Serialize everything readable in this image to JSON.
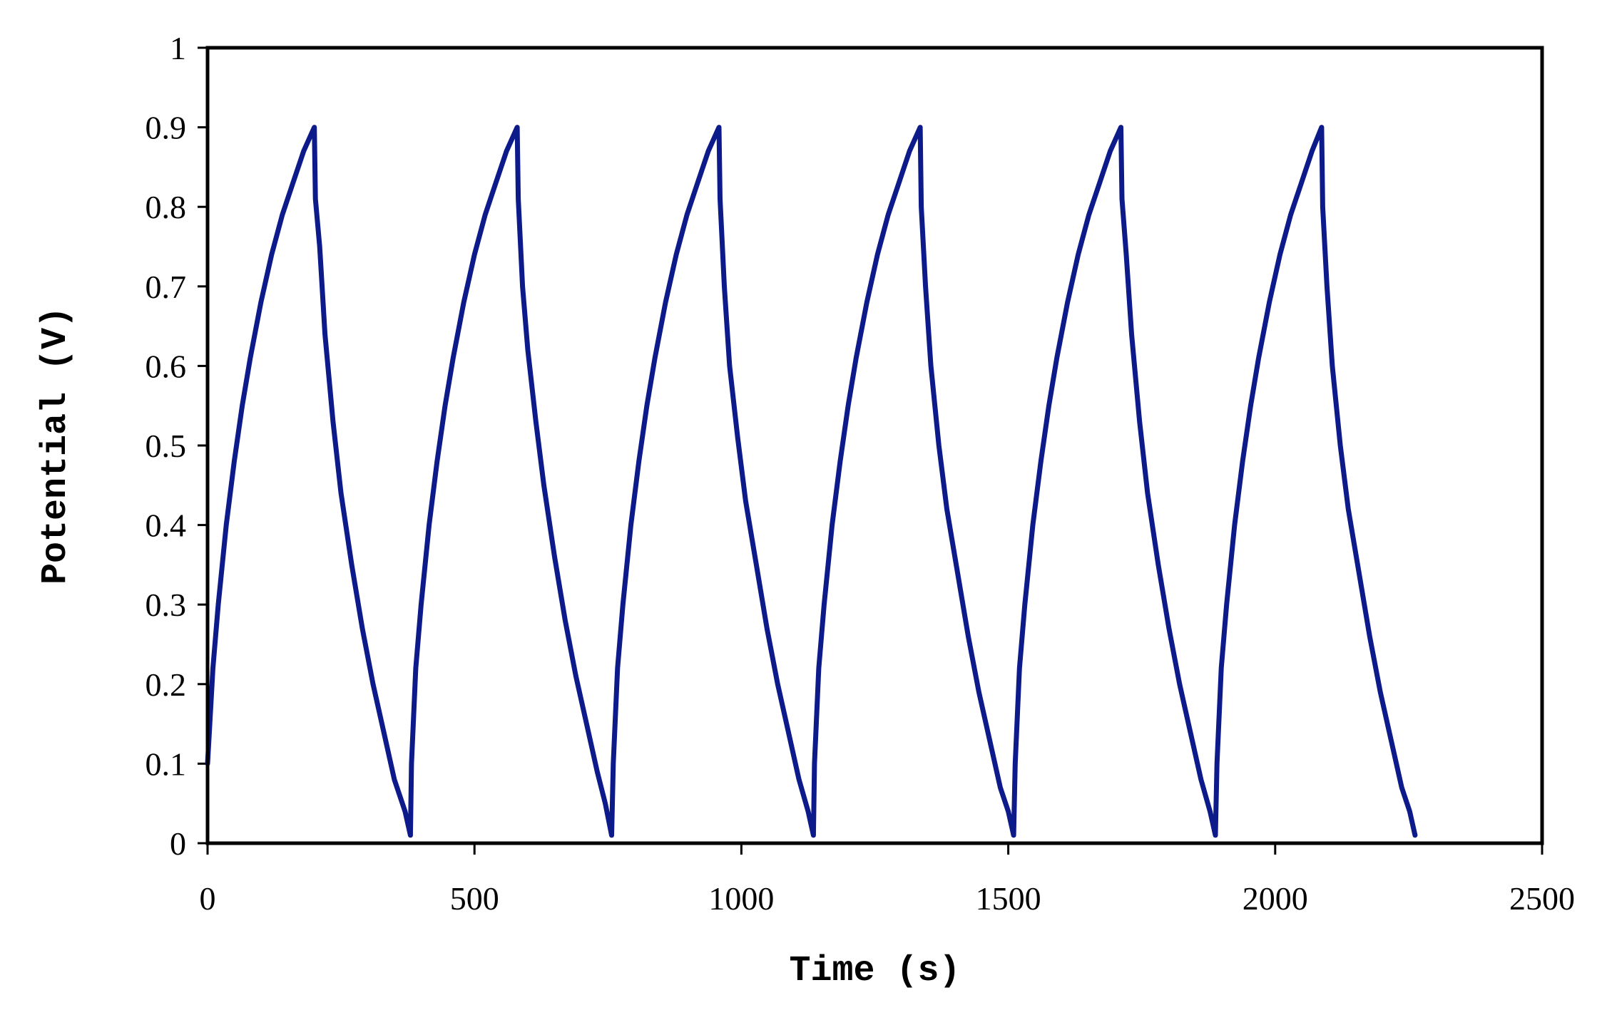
{
  "chart_data": {
    "type": "line",
    "title": "",
    "xlabel": "Time (s)",
    "ylabel": "Potential (V)",
    "xlim": [
      0,
      2500
    ],
    "ylim": [
      0,
      1
    ],
    "x_ticks": [
      0,
      500,
      1000,
      1500,
      2000,
      2500
    ],
    "x_tick_labels": [
      "0",
      "500",
      "1000",
      "1500",
      "2000",
      "2500"
    ],
    "y_ticks": [
      0,
      0.1,
      0.2,
      0.3,
      0.4,
      0.5,
      0.6,
      0.7,
      0.8,
      0.9,
      1
    ],
    "y_tick_labels": [
      "0",
      "0.1",
      "0.2",
      "0.3",
      "0.4",
      "0.5",
      "0.6",
      "0.7",
      "0.8",
      "0.9",
      "1"
    ],
    "grid": false,
    "legend": "none",
    "series": [
      {
        "color": "#0d1a8a",
        "points": [
          [
            0,
            0.1
          ],
          [
            10,
            0.22
          ],
          [
            20,
            0.3
          ],
          [
            35,
            0.4
          ],
          [
            50,
            0.48
          ],
          [
            65,
            0.55
          ],
          [
            80,
            0.61
          ],
          [
            100,
            0.68
          ],
          [
            120,
            0.74
          ],
          [
            140,
            0.79
          ],
          [
            160,
            0.83
          ],
          [
            180,
            0.87
          ],
          [
            200,
            0.9
          ],
          [
            202,
            0.81
          ],
          [
            210,
            0.75
          ],
          [
            220,
            0.64
          ],
          [
            235,
            0.53
          ],
          [
            250,
            0.44
          ],
          [
            270,
            0.35
          ],
          [
            290,
            0.27
          ],
          [
            310,
            0.2
          ],
          [
            330,
            0.14
          ],
          [
            350,
            0.08
          ],
          [
            370,
            0.04
          ],
          [
            380,
            0.01
          ],
          [
            382,
            0.1
          ],
          [
            390,
            0.22
          ],
          [
            400,
            0.3
          ],
          [
            415,
            0.4
          ],
          [
            430,
            0.48
          ],
          [
            445,
            0.55
          ],
          [
            460,
            0.61
          ],
          [
            480,
            0.68
          ],
          [
            500,
            0.74
          ],
          [
            520,
            0.79
          ],
          [
            540,
            0.83
          ],
          [
            560,
            0.87
          ],
          [
            580,
            0.9
          ],
          [
            582,
            0.81
          ],
          [
            590,
            0.7
          ],
          [
            600,
            0.62
          ],
          [
            615,
            0.53
          ],
          [
            630,
            0.45
          ],
          [
            650,
            0.36
          ],
          [
            670,
            0.28
          ],
          [
            690,
            0.21
          ],
          [
            710,
            0.15
          ],
          [
            730,
            0.09
          ],
          [
            745,
            0.05
          ],
          [
            757,
            0.01
          ],
          [
            760,
            0.1
          ],
          [
            768,
            0.22
          ],
          [
            778,
            0.3
          ],
          [
            793,
            0.4
          ],
          [
            808,
            0.48
          ],
          [
            823,
            0.55
          ],
          [
            838,
            0.61
          ],
          [
            858,
            0.68
          ],
          [
            878,
            0.74
          ],
          [
            898,
            0.79
          ],
          [
            918,
            0.83
          ],
          [
            938,
            0.87
          ],
          [
            958,
            0.9
          ],
          [
            960,
            0.81
          ],
          [
            968,
            0.7
          ],
          [
            978,
            0.6
          ],
          [
            993,
            0.51
          ],
          [
            1008,
            0.43
          ],
          [
            1028,
            0.35
          ],
          [
            1048,
            0.27
          ],
          [
            1068,
            0.2
          ],
          [
            1088,
            0.14
          ],
          [
            1108,
            0.08
          ],
          [
            1125,
            0.04
          ],
          [
            1135,
            0.01
          ],
          [
            1137,
            0.1
          ],
          [
            1145,
            0.22
          ],
          [
            1155,
            0.3
          ],
          [
            1170,
            0.4
          ],
          [
            1185,
            0.48
          ],
          [
            1200,
            0.55
          ],
          [
            1215,
            0.61
          ],
          [
            1235,
            0.68
          ],
          [
            1255,
            0.74
          ],
          [
            1275,
            0.79
          ],
          [
            1295,
            0.83
          ],
          [
            1315,
            0.87
          ],
          [
            1335,
            0.9
          ],
          [
            1337,
            0.8
          ],
          [
            1345,
            0.7
          ],
          [
            1355,
            0.6
          ],
          [
            1370,
            0.5
          ],
          [
            1385,
            0.42
          ],
          [
            1405,
            0.34
          ],
          [
            1425,
            0.26
          ],
          [
            1445,
            0.19
          ],
          [
            1465,
            0.13
          ],
          [
            1485,
            0.07
          ],
          [
            1500,
            0.04
          ],
          [
            1510,
            0.01
          ],
          [
            1513,
            0.1
          ],
          [
            1521,
            0.22
          ],
          [
            1531,
            0.3
          ],
          [
            1546,
            0.4
          ],
          [
            1561,
            0.48
          ],
          [
            1576,
            0.55
          ],
          [
            1591,
            0.61
          ],
          [
            1611,
            0.68
          ],
          [
            1631,
            0.74
          ],
          [
            1651,
            0.79
          ],
          [
            1671,
            0.83
          ],
          [
            1691,
            0.87
          ],
          [
            1711,
            0.9
          ],
          [
            1713,
            0.81
          ],
          [
            1721,
            0.74
          ],
          [
            1731,
            0.64
          ],
          [
            1746,
            0.53
          ],
          [
            1761,
            0.44
          ],
          [
            1781,
            0.35
          ],
          [
            1801,
            0.27
          ],
          [
            1821,
            0.2
          ],
          [
            1841,
            0.14
          ],
          [
            1861,
            0.08
          ],
          [
            1878,
            0.04
          ],
          [
            1888,
            0.01
          ],
          [
            1891,
            0.1
          ],
          [
            1899,
            0.22
          ],
          [
            1909,
            0.3
          ],
          [
            1924,
            0.4
          ],
          [
            1939,
            0.48
          ],
          [
            1954,
            0.55
          ],
          [
            1969,
            0.61
          ],
          [
            1989,
            0.68
          ],
          [
            2009,
            0.74
          ],
          [
            2029,
            0.79
          ],
          [
            2049,
            0.83
          ],
          [
            2069,
            0.87
          ],
          [
            2087,
            0.9
          ],
          [
            2089,
            0.8
          ],
          [
            2097,
            0.7
          ],
          [
            2107,
            0.6
          ],
          [
            2122,
            0.5
          ],
          [
            2137,
            0.42
          ],
          [
            2157,
            0.34
          ],
          [
            2177,
            0.26
          ],
          [
            2197,
            0.19
          ],
          [
            2217,
            0.13
          ],
          [
            2237,
            0.07
          ],
          [
            2252,
            0.04
          ],
          [
            2262,
            0.01
          ]
        ]
      }
    ]
  }
}
